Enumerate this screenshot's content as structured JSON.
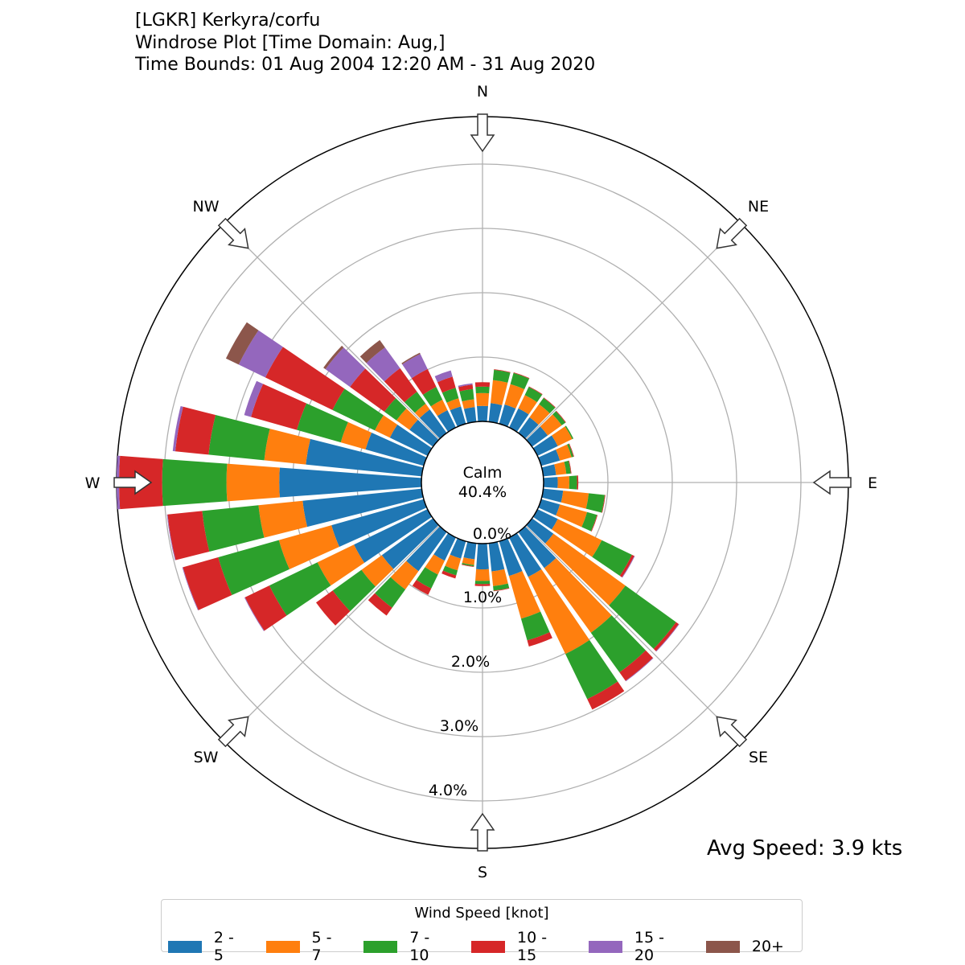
{
  "chart_data": {
    "type": "windrose",
    "title_lines": [
      "[LGKR] Kerkyra/corfu",
      "Windrose Plot [Time Domain: Aug,]",
      "Time Bounds: 01 Aug 2004 12:20 AM - 31 Aug 2020"
    ],
    "calm_label": "Calm",
    "calm_value": "40.4%",
    "avg_speed": "Avg Speed: 3.9 kts",
    "compass_labels": [
      "N",
      "NE",
      "E",
      "SE",
      "S",
      "SW",
      "W",
      "NW"
    ],
    "radial_tick_labels": [
      "0.0%",
      "1.0%",
      "2.0%",
      "3.0%",
      "4.0%"
    ],
    "radial_ticks": [
      0,
      1,
      2,
      3,
      4
    ],
    "rmax": 4.74,
    "legend_title": "Wind Speed [knot]",
    "bins": [
      {
        "label": "2 - 5",
        "color": "#1f77b4"
      },
      {
        "label": "5 - 7",
        "color": "#ff7f0e"
      },
      {
        "label": "7 - 10",
        "color": "#2ca02c"
      },
      {
        "label": "10 - 15",
        "color": "#d62728"
      },
      {
        "label": "15 - 20",
        "color": "#9467bd"
      },
      {
        "label": "20+",
        "color": "#8c564b"
      }
    ],
    "directions_deg": [
      0,
      10,
      20,
      30,
      40,
      50,
      60,
      70,
      80,
      90,
      100,
      110,
      120,
      130,
      140,
      150,
      160,
      170,
      180,
      190,
      200,
      210,
      220,
      230,
      240,
      250,
      260,
      270,
      280,
      290,
      300,
      310,
      320,
      330,
      340,
      350
    ],
    "cumulative_percent": [
      [
        0.24,
        0.44,
        0.54,
        0.61,
        0.61,
        0.61
      ],
      [
        0.29,
        0.65,
        0.81,
        0.82,
        0.82,
        0.82
      ],
      [
        0.31,
        0.64,
        0.82,
        0.83,
        0.83,
        0.83
      ],
      [
        0.33,
        0.56,
        0.7,
        0.71,
        0.71,
        0.71
      ],
      [
        0.3,
        0.55,
        0.67,
        0.68,
        0.68,
        0.68
      ],
      [
        0.3,
        0.57,
        0.64,
        0.65,
        0.65,
        0.65
      ],
      [
        0.35,
        0.6,
        0.62,
        0.62,
        0.62,
        0.62
      ],
      [
        0.3,
        0.49,
        0.52,
        0.53,
        0.53,
        0.53
      ],
      [
        0.2,
        0.36,
        0.43,
        0.44,
        0.44,
        0.44
      ],
      [
        0.22,
        0.4,
        0.52,
        0.54,
        0.54,
        0.54
      ],
      [
        0.31,
        0.71,
        0.96,
        0.97,
        0.97,
        0.97
      ],
      [
        0.3,
        0.74,
        0.9,
        0.91,
        0.91,
        0.91
      ],
      [
        0.35,
        1.11,
        1.63,
        1.67,
        1.68,
        1.68
      ],
      [
        0.41,
        1.79,
        2.76,
        2.81,
        2.82,
        2.82
      ],
      [
        0.69,
        1.93,
        2.69,
        2.85,
        2.86,
        2.86
      ],
      [
        0.68,
        2.01,
        2.79,
        2.97,
        2.97,
        2.97
      ],
      [
        0.56,
        1.25,
        1.6,
        1.7,
        1.7,
        1.7
      ],
      [
        0.44,
        0.67,
        0.74,
        0.75,
        0.75,
        0.75
      ],
      [
        0.4,
        0.58,
        0.63,
        0.66,
        0.66,
        0.66
      ],
      [
        0.25,
        0.34,
        0.36,
        0.37,
        0.37,
        0.37
      ],
      [
        0.28,
        0.47,
        0.55,
        0.6,
        0.6,
        0.6
      ],
      [
        0.4,
        0.64,
        0.88,
        0.99,
        0.99,
        0.99
      ],
      [
        0.75,
        1.1,
        1.45,
        1.6,
        1.6,
        1.6
      ],
      [
        0.98,
        1.37,
        1.92,
        2.24,
        2.24,
        2.24
      ],
      [
        1.27,
        1.9,
        2.73,
        3.15,
        3.16,
        3.16
      ],
      [
        1.49,
        2.34,
        3.32,
        3.89,
        3.9,
        3.9
      ],
      [
        1.86,
        2.55,
        3.43,
        3.97,
        3.98,
        3.98
      ],
      [
        2.21,
        3.03,
        4.03,
        4.7,
        4.74,
        4.74
      ],
      [
        1.81,
        2.46,
        3.33,
        3.85,
        3.89,
        3.89
      ],
      [
        0.94,
        1.34,
        2.05,
        2.79,
        2.9,
        2.9
      ],
      [
        0.65,
        0.91,
        1.64,
        2.8,
        3.26,
        3.48
      ],
      [
        0.45,
        0.7,
        0.93,
        1.59,
        2.06,
        2.1
      ],
      [
        0.45,
        0.56,
        0.79,
        1.24,
        1.64,
        1.78
      ],
      [
        0.3,
        0.48,
        0.7,
        1.01,
        1.27,
        1.29
      ],
      [
        0.28,
        0.41,
        0.58,
        0.76,
        0.86,
        0.86
      ],
      [
        0.23,
        0.35,
        0.51,
        0.58,
        0.6,
        0.6
      ]
    ]
  }
}
